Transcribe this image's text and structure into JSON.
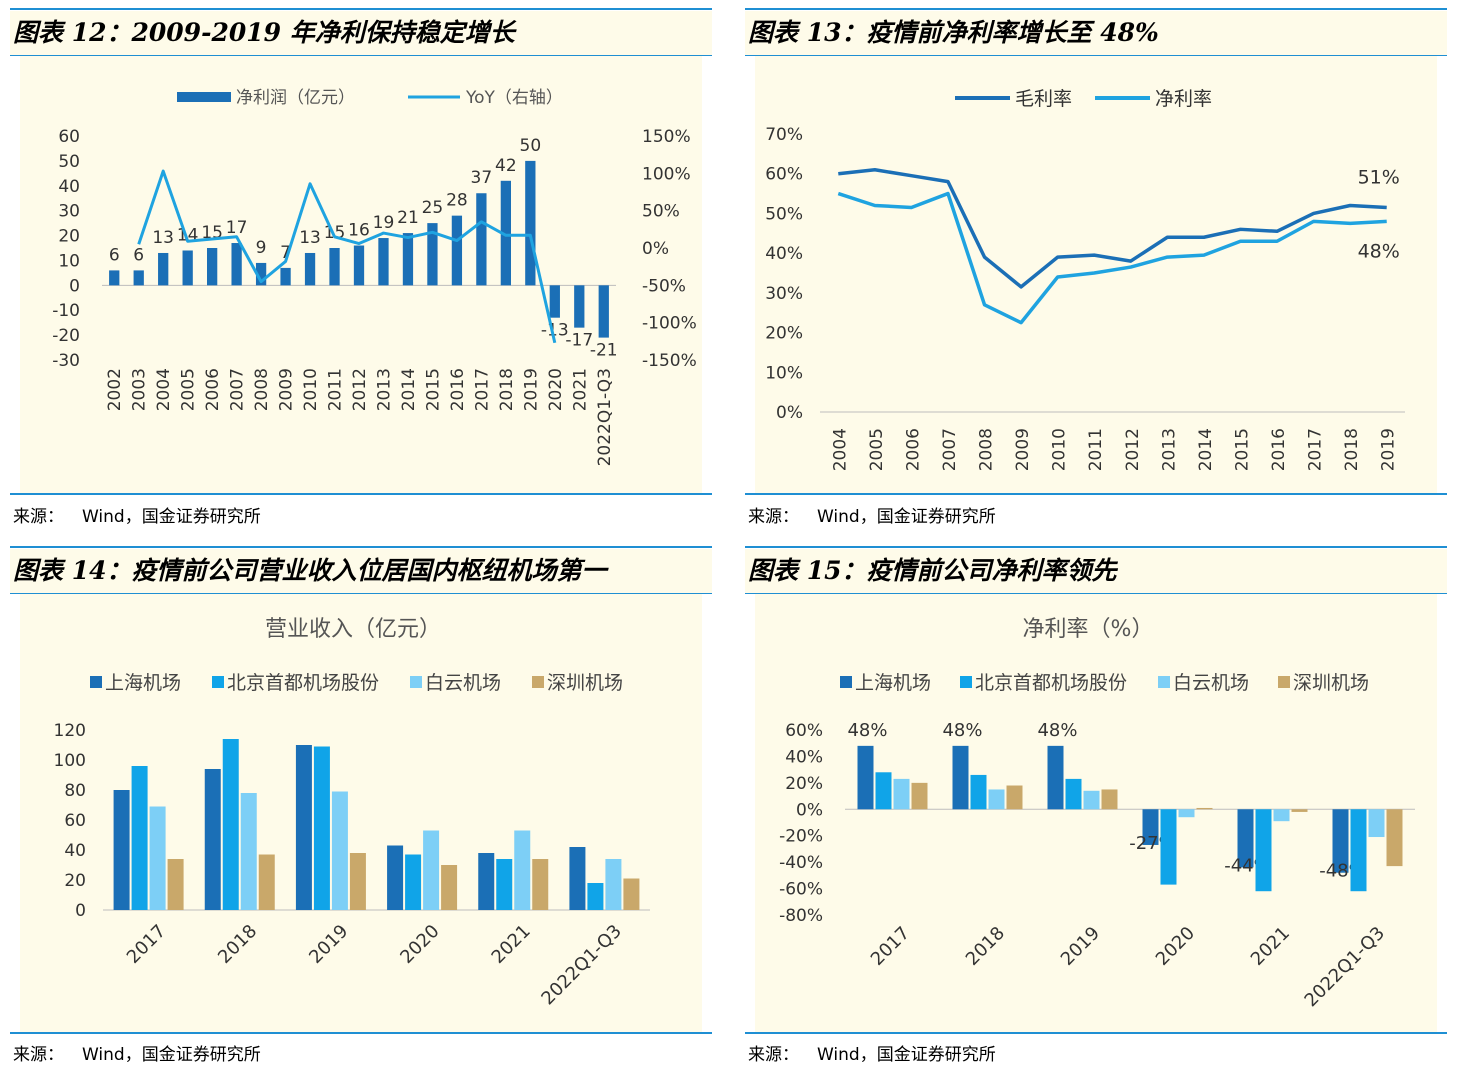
{
  "panels": [
    {
      "title": "图表 12：2009-2019 年净利保持稳定增长",
      "source_label": "来源：",
      "source_text": "Wind，国金证券研究所",
      "chart_data": {
        "type": "bar",
        "categories": [
          "2002",
          "2003",
          "2004",
          "2005",
          "2006",
          "2007",
          "2008",
          "2009",
          "2010",
          "2011",
          "2012",
          "2013",
          "2014",
          "2015",
          "2016",
          "2017",
          "2018",
          "2019",
          "2020",
          "2021",
          "2022Q1-Q3"
        ],
        "series": [
          {
            "name": "净利润（亿元）",
            "type": "bar",
            "color": "#1b6fb6",
            "values": [
              6,
              6,
              13,
              14,
              15,
              17,
              9,
              7,
              13,
              15,
              16,
              19,
              21,
              25,
              28,
              37,
              42,
              50,
              -13,
              -17,
              -21
            ],
            "data_labels": [
              "6",
              "6",
              "13",
              "14",
              "15",
              "17",
              "9",
              "7",
              "13",
              "15",
              "16",
              "19",
              "21",
              "25",
              "28",
              "37",
              "42",
              "50",
              "-13",
              "-17",
              "-21"
            ]
          },
          {
            "name": "YoY（右轴）",
            "type": "line",
            "axis": "right",
            "color": "#1fa3e0",
            "values": [
              null,
              5,
              103,
              9,
              12,
              15,
              -45,
              -18,
              86,
              15,
              6,
              20,
              14,
              21,
              10,
              35,
              17,
              17,
              -127,
              null,
              null
            ]
          }
        ],
        "ylim": [
          -30,
          60
        ],
        "yticks": [
          "60",
          "50",
          "40",
          "30",
          "20",
          "10",
          "0",
          "-10",
          "-20",
          "-30"
        ],
        "y2lim": [
          -150,
          150
        ],
        "y2ticks": [
          "150%",
          "100%",
          "50%",
          "0%",
          "-50%",
          "-100%",
          "-150%"
        ],
        "legend_position": "top"
      }
    },
    {
      "title": "图表 13：疫情前净利率增长至 48%",
      "source_label": "来源：",
      "source_text": "Wind，国金证券研究所",
      "chart_data": {
        "type": "line",
        "categories": [
          "2004",
          "2005",
          "2006",
          "2007",
          "2008",
          "2009",
          "2010",
          "2011",
          "2012",
          "2013",
          "2014",
          "2015",
          "2016",
          "2017",
          "2018",
          "2019"
        ],
        "series": [
          {
            "name": "毛利率",
            "color": "#1b6fb6",
            "values": [
              60,
              61,
              59.5,
              58,
              39,
              31.5,
              39,
              39.5,
              38,
              44,
              44,
              46,
              45.5,
              50,
              52,
              51.5
            ]
          },
          {
            "name": "净利率",
            "color": "#1fa3e0",
            "values": [
              55,
              52,
              51.5,
              55,
              27,
              22.5,
              34,
              35,
              36.5,
              39,
              39.5,
              43,
              43,
              48,
              47.5,
              48
            ]
          }
        ],
        "annotations": [
          "51%",
          "48%"
        ],
        "ylim": [
          0,
          70
        ],
        "yticks": [
          "70%",
          "60%",
          "50%",
          "40%",
          "30%",
          "20%",
          "10%",
          "0%"
        ],
        "legend_position": "top"
      }
    },
    {
      "title": "图表 14：疫情前公司营业收入位居国内枢纽机场第一",
      "source_label": "来源：",
      "source_text": "Wind，国金证券研究所",
      "chart_data": {
        "type": "bar",
        "title": "营业收入（亿元）",
        "categories": [
          "2017",
          "2018",
          "2019",
          "2020",
          "2021",
          "2022Q1-Q3"
        ],
        "series": [
          {
            "name": "上海机场",
            "color": "#1b6fb6",
            "values": [
              80,
              94,
              110,
              43,
              38,
              42
            ]
          },
          {
            "name": "北京首都机场股份",
            "color": "#10a4e8",
            "values": [
              96,
              114,
              109,
              37,
              34,
              18
            ]
          },
          {
            "name": "白云机场",
            "color": "#7dcff6",
            "values": [
              69,
              78,
              79,
              53,
              53,
              34
            ]
          },
          {
            "name": "深圳机场",
            "color": "#c9a86a",
            "values": [
              34,
              37,
              38,
              30,
              34,
              21
            ]
          }
        ],
        "ylim": [
          0,
          120
        ],
        "yticks": [
          "120",
          "100",
          "80",
          "60",
          "40",
          "20",
          "0"
        ],
        "legend_position": "top"
      }
    },
    {
      "title": "图表 15：疫情前公司净利率领先",
      "source_label": "来源：",
      "source_text": "Wind，国金证券研究所",
      "chart_data": {
        "type": "bar",
        "title": "净利率（%）",
        "categories": [
          "2017",
          "2018",
          "2019",
          "2020",
          "2021",
          "2022Q1-Q3"
        ],
        "series": [
          {
            "name": "上海机场",
            "color": "#1b6fb6",
            "values": [
              48,
              48,
              48,
              -27,
              -44,
              -48
            ],
            "data_labels": [
              "48%",
              "48%",
              "48%",
              "-27%",
              "-44%",
              "-48%"
            ]
          },
          {
            "name": "北京首都机场股份",
            "color": "#10a4e8",
            "values": [
              28,
              26,
              23,
              -57,
              -62,
              -62
            ]
          },
          {
            "name": "白云机场",
            "color": "#7dcff6",
            "values": [
              23,
              15,
              14,
              -6,
              -9,
              -21
            ]
          },
          {
            "name": "深圳机场",
            "color": "#c9a86a",
            "values": [
              20,
              18,
              15,
              1,
              -2,
              -43
            ]
          }
        ],
        "ylim": [
          -80,
          60
        ],
        "yticks": [
          "60%",
          "40%",
          "20%",
          "0%",
          "-20%",
          "-40%",
          "-60%",
          "-80%"
        ],
        "legend_position": "top"
      }
    }
  ]
}
